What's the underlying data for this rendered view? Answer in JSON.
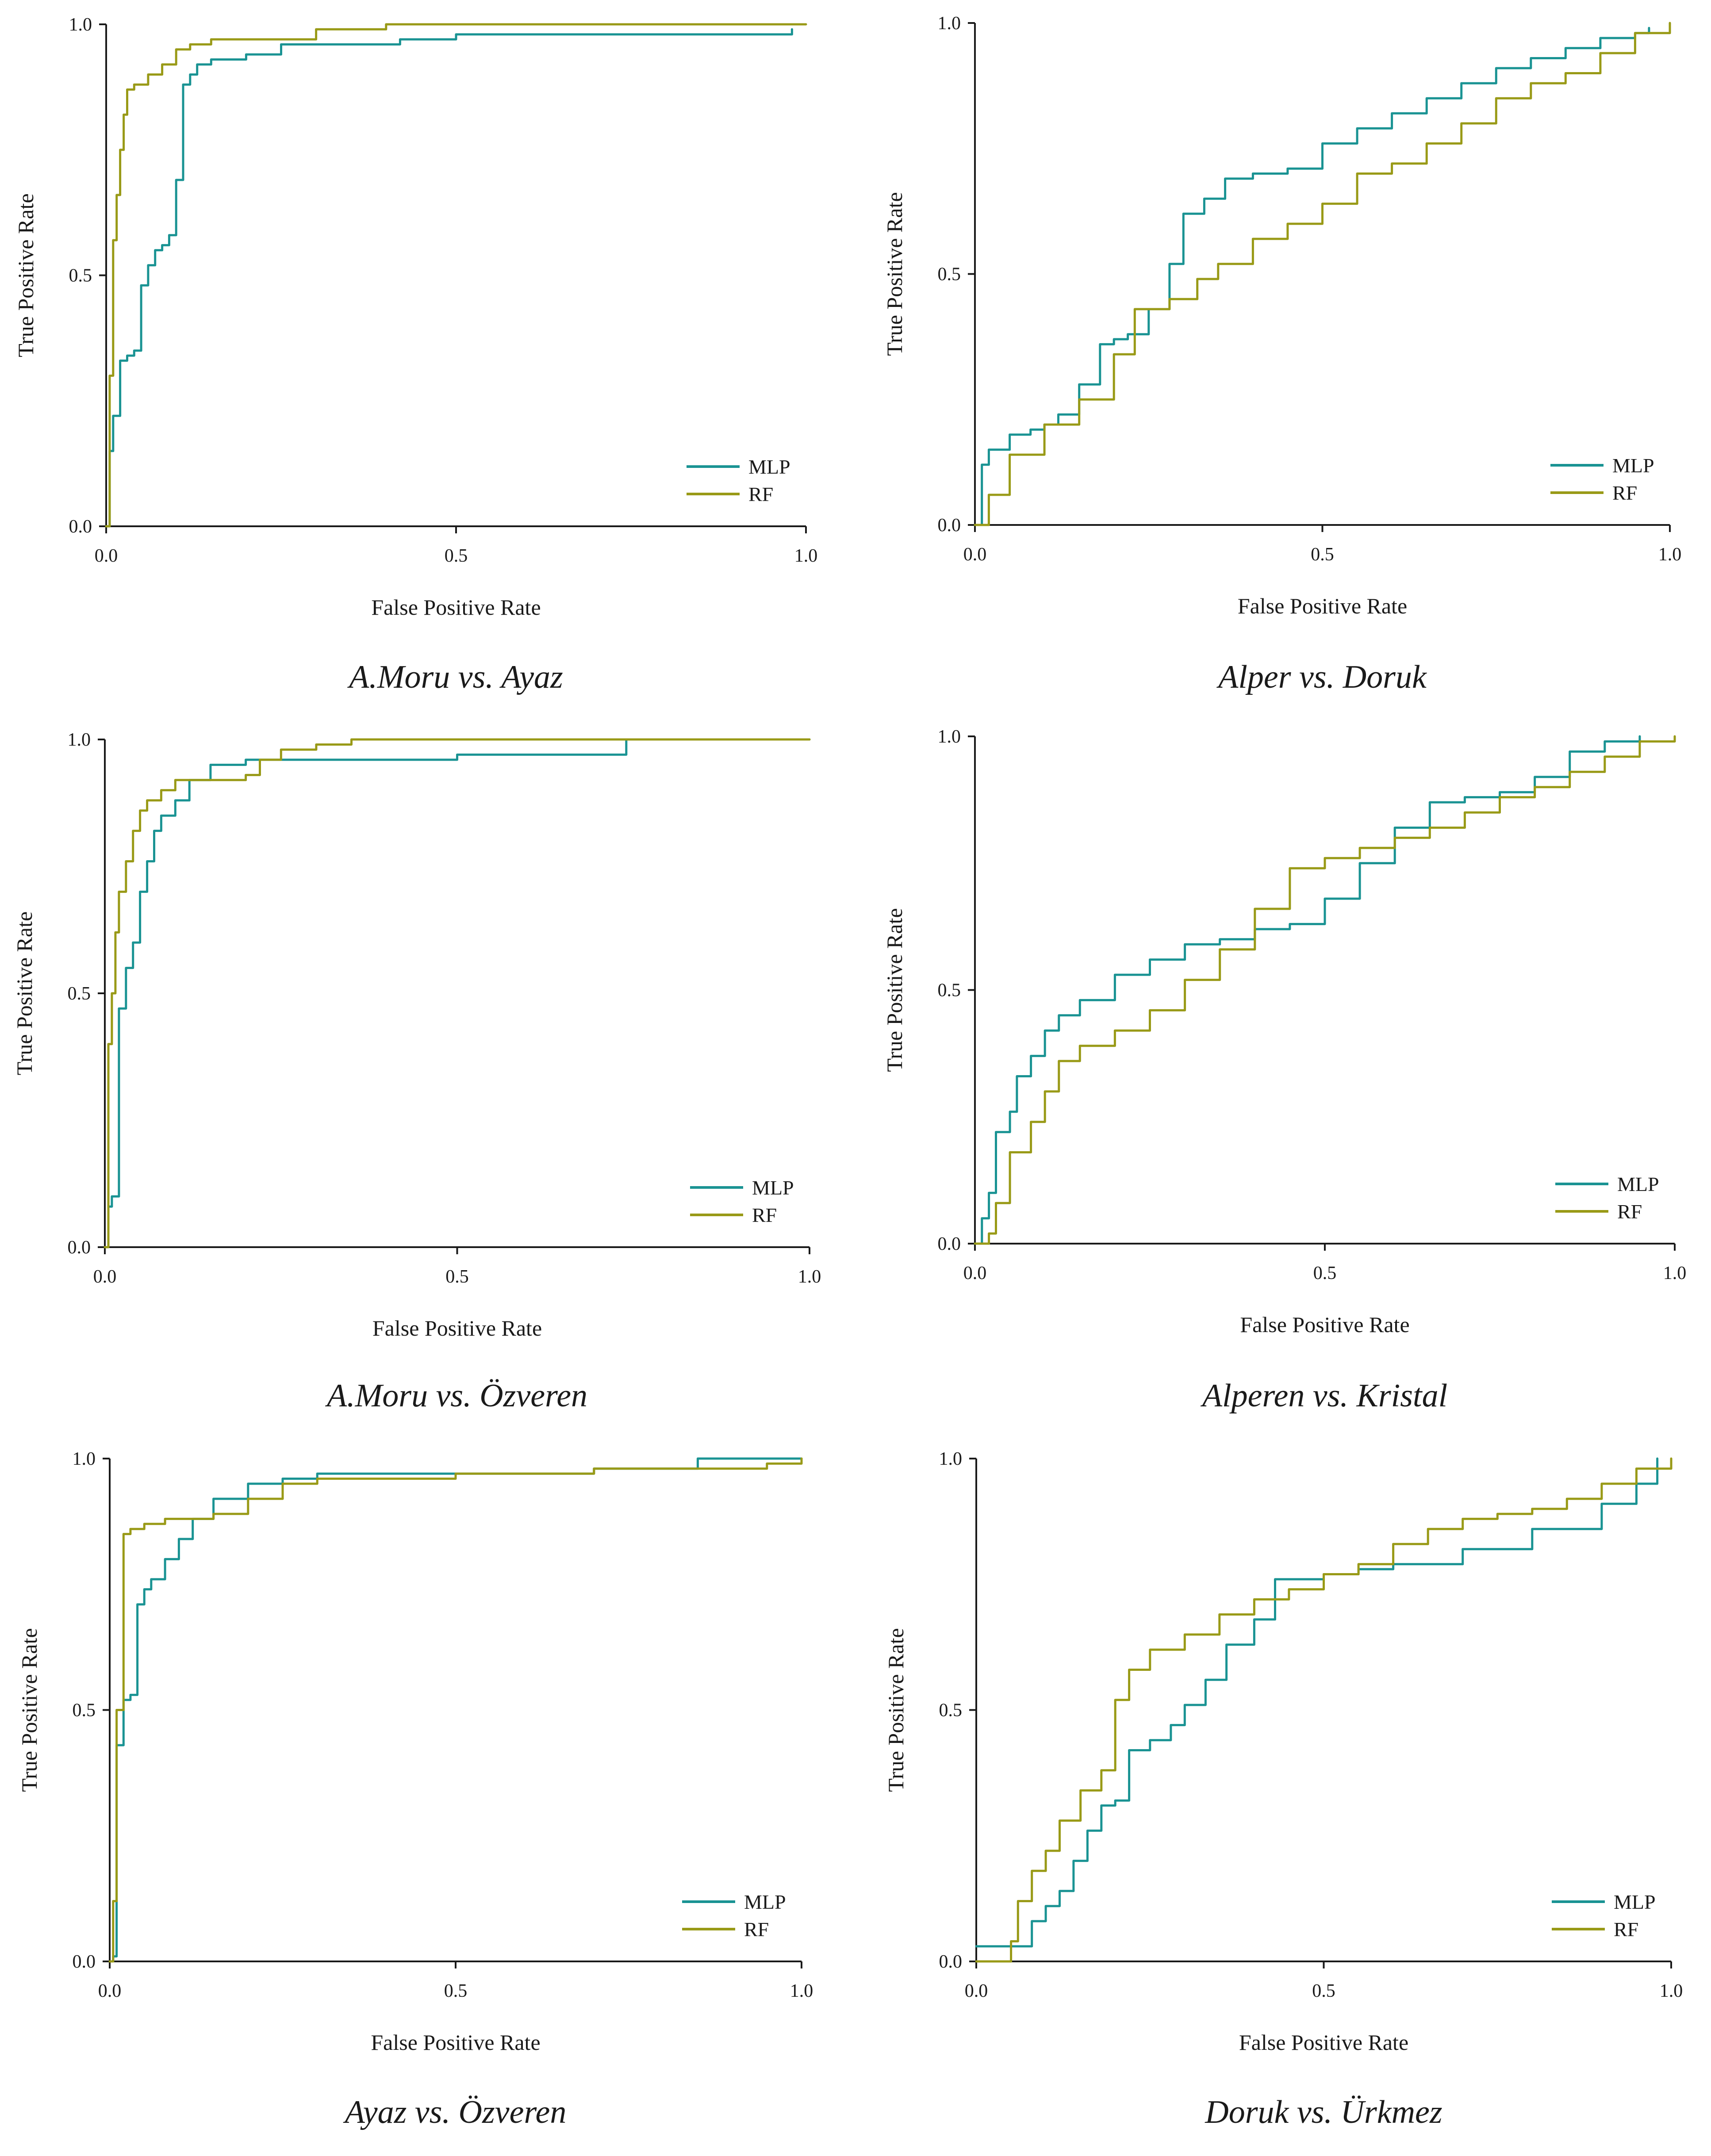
{
  "figure": {
    "captions": [
      "A.Moru vs. Ayaz",
      "Alper vs. Doruk",
      "A.Moru vs. Özveren",
      "Alperen vs. Kristal",
      "Ayaz vs. Özveren",
      "Doruk vs. Ürkmez"
    ]
  },
  "colors": {
    "MLP": "#1a9393",
    "RF": "#999a17",
    "axis": "#1a1a1a"
  },
  "chart_data": [
    {
      "type": "line",
      "title": "A.Moru vs. Ayaz",
      "xlabel": "False Positive Rate",
      "ylabel": "True Positive Rate",
      "xlim": [
        0,
        1
      ],
      "ylim": [
        0,
        1
      ],
      "xticks": [
        "0.0",
        "0.5",
        "1.0"
      ],
      "yticks": [
        "0.0",
        "0.5",
        "1.0"
      ],
      "legend": [
        "MLP",
        "RF"
      ],
      "legend_position": "bottom-right",
      "series": [
        {
          "name": "MLP",
          "x": [
            0,
            0.005,
            0.01,
            0.02,
            0.03,
            0.04,
            0.05,
            0.06,
            0.07,
            0.08,
            0.09,
            0.1,
            0.11,
            0.12,
            0.13,
            0.15,
            0.2,
            0.25,
            0.3,
            0.42,
            0.5,
            0.6,
            0.7,
            0.8,
            0.97,
            0.98
          ],
          "y": [
            0,
            0.15,
            0.22,
            0.33,
            0.34,
            0.35,
            0.48,
            0.52,
            0.55,
            0.56,
            0.58,
            0.69,
            0.88,
            0.9,
            0.92,
            0.93,
            0.94,
            0.96,
            0.96,
            0.97,
            0.98,
            0.98,
            0.98,
            0.98,
            0.98,
            0.99
          ]
        },
        {
          "name": "RF",
          "x": [
            0,
            0.005,
            0.01,
            0.015,
            0.02,
            0.025,
            0.03,
            0.04,
            0.05,
            0.06,
            0.08,
            0.1,
            0.12,
            0.15,
            0.2,
            0.3,
            0.4,
            0.5,
            0.7,
            1.0
          ],
          "y": [
            0,
            0.3,
            0.57,
            0.66,
            0.75,
            0.82,
            0.87,
            0.88,
            0.88,
            0.9,
            0.92,
            0.95,
            0.96,
            0.97,
            0.97,
            0.99,
            1.0,
            1.0,
            1.0,
            1.0
          ]
        }
      ]
    },
    {
      "type": "line",
      "title": "Alper vs. Doruk",
      "xlabel": "False Positive Rate",
      "ylabel": "True Positive Rate",
      "xlim": [
        0,
        1
      ],
      "ylim": [
        0,
        1
      ],
      "xticks": [
        "0.0",
        "0.5",
        "1.0"
      ],
      "yticks": [
        "0.0",
        "0.5",
        "1.0"
      ],
      "legend": [
        "MLP",
        "RF"
      ],
      "legend_position": "bottom-right",
      "series": [
        {
          "name": "MLP",
          "x": [
            0,
            0.01,
            0.02,
            0.05,
            0.08,
            0.1,
            0.12,
            0.15,
            0.18,
            0.2,
            0.22,
            0.25,
            0.28,
            0.3,
            0.33,
            0.36,
            0.4,
            0.45,
            0.5,
            0.55,
            0.6,
            0.65,
            0.7,
            0.75,
            0.8,
            0.85,
            0.9,
            0.95,
            0.97
          ],
          "y": [
            0,
            0.12,
            0.15,
            0.18,
            0.19,
            0.2,
            0.22,
            0.28,
            0.36,
            0.37,
            0.38,
            0.43,
            0.52,
            0.62,
            0.65,
            0.69,
            0.7,
            0.71,
            0.76,
            0.79,
            0.82,
            0.85,
            0.88,
            0.91,
            0.93,
            0.95,
            0.97,
            0.98,
            0.99
          ]
        },
        {
          "name": "RF",
          "x": [
            0,
            0.02,
            0.05,
            0.1,
            0.15,
            0.2,
            0.23,
            0.28,
            0.32,
            0.35,
            0.4,
            0.45,
            0.5,
            0.55,
            0.6,
            0.65,
            0.7,
            0.75,
            0.8,
            0.85,
            0.9,
            0.95,
            1.0
          ],
          "y": [
            0,
            0.06,
            0.14,
            0.2,
            0.25,
            0.34,
            0.43,
            0.45,
            0.49,
            0.52,
            0.57,
            0.6,
            0.64,
            0.7,
            0.72,
            0.76,
            0.8,
            0.85,
            0.88,
            0.9,
            0.94,
            0.98,
            1.0
          ]
        }
      ]
    },
    {
      "type": "line",
      "title": "A.Moru vs. Özveren",
      "xlabel": "False Positive Rate",
      "ylabel": "True Positive Rate",
      "xlim": [
        0,
        1
      ],
      "ylim": [
        0,
        1
      ],
      "xticks": [
        "0.0",
        "0.5",
        "1.0"
      ],
      "yticks": [
        "0.0",
        "0.5",
        "1.0"
      ],
      "legend": [
        "MLP",
        "RF"
      ],
      "legend_position": "bottom-right",
      "series": [
        {
          "name": "MLP",
          "x": [
            0,
            0.005,
            0.01,
            0.02,
            0.03,
            0.04,
            0.05,
            0.06,
            0.07,
            0.08,
            0.1,
            0.12,
            0.15,
            0.2,
            0.3,
            0.5,
            0.7,
            0.74,
            0.8,
            1.0
          ],
          "y": [
            0,
            0.08,
            0.1,
            0.47,
            0.55,
            0.6,
            0.7,
            0.76,
            0.82,
            0.85,
            0.88,
            0.92,
            0.95,
            0.96,
            0.96,
            0.97,
            0.97,
            1.0,
            1.0,
            1.0
          ]
        },
        {
          "name": "RF",
          "x": [
            0,
            0.005,
            0.01,
            0.015,
            0.02,
            0.03,
            0.04,
            0.05,
            0.06,
            0.08,
            0.1,
            0.15,
            0.2,
            0.22,
            0.25,
            0.3,
            0.35,
            0.5,
            1.0
          ],
          "y": [
            0,
            0.4,
            0.5,
            0.62,
            0.7,
            0.76,
            0.82,
            0.86,
            0.88,
            0.9,
            0.92,
            0.92,
            0.93,
            0.96,
            0.98,
            0.99,
            1.0,
            1.0,
            1.0
          ]
        }
      ]
    },
    {
      "type": "line",
      "title": "Alperen vs. Kristal",
      "xlabel": "False Positive Rate",
      "ylabel": "True Positive Rate",
      "xlim": [
        0,
        1
      ],
      "ylim": [
        0,
        1
      ],
      "xticks": [
        "0.0",
        "0.5",
        "1.0"
      ],
      "yticks": [
        "0.0",
        "0.5",
        "1.0"
      ],
      "legend": [
        "MLP",
        "RF"
      ],
      "legend_position": "bottom-right",
      "series": [
        {
          "name": "MLP",
          "x": [
            0,
            0.01,
            0.02,
            0.03,
            0.05,
            0.06,
            0.08,
            0.1,
            0.12,
            0.15,
            0.2,
            0.25,
            0.3,
            0.35,
            0.4,
            0.45,
            0.5,
            0.55,
            0.6,
            0.65,
            0.7,
            0.75,
            0.8,
            0.85,
            0.9,
            0.95
          ],
          "y": [
            0,
            0.05,
            0.1,
            0.22,
            0.26,
            0.33,
            0.37,
            0.42,
            0.45,
            0.48,
            0.53,
            0.56,
            0.59,
            0.6,
            0.62,
            0.63,
            0.68,
            0.75,
            0.82,
            0.87,
            0.88,
            0.89,
            0.92,
            0.97,
            0.99,
            1.0
          ]
        },
        {
          "name": "RF",
          "x": [
            0,
            0.02,
            0.03,
            0.05,
            0.08,
            0.1,
            0.12,
            0.15,
            0.2,
            0.25,
            0.3,
            0.35,
            0.4,
            0.45,
            0.5,
            0.55,
            0.6,
            0.65,
            0.7,
            0.75,
            0.8,
            0.85,
            0.9,
            0.95,
            1.0
          ],
          "y": [
            0,
            0.02,
            0.08,
            0.18,
            0.24,
            0.3,
            0.36,
            0.39,
            0.42,
            0.46,
            0.52,
            0.58,
            0.66,
            0.74,
            0.76,
            0.78,
            0.8,
            0.82,
            0.85,
            0.88,
            0.9,
            0.93,
            0.96,
            0.99,
            1.0
          ]
        }
      ]
    },
    {
      "type": "line",
      "title": "Ayaz vs. Özveren",
      "xlabel": "False Positive Rate",
      "ylabel": "True Positive Rate",
      "xlim": [
        0,
        1
      ],
      "ylim": [
        0,
        1
      ],
      "xticks": [
        "0.0",
        "0.5",
        "1.0"
      ],
      "yticks": [
        "0.0",
        "0.5",
        "1.0"
      ],
      "legend": [
        "MLP",
        "RF"
      ],
      "legend_position": "bottom-right",
      "series": [
        {
          "name": "MLP",
          "x": [
            0,
            0.005,
            0.01,
            0.02,
            0.03,
            0.04,
            0.05,
            0.06,
            0.08,
            0.1,
            0.12,
            0.15,
            0.2,
            0.25,
            0.3,
            0.5,
            0.7,
            0.84,
            0.85,
            1.0
          ],
          "y": [
            0,
            0.01,
            0.43,
            0.52,
            0.53,
            0.71,
            0.74,
            0.76,
            0.8,
            0.84,
            0.88,
            0.92,
            0.95,
            0.96,
            0.97,
            0.97,
            0.98,
            0.98,
            1.0,
            1.0
          ]
        },
        {
          "name": "RF",
          "x": [
            0,
            0.005,
            0.01,
            0.02,
            0.03,
            0.05,
            0.08,
            0.1,
            0.15,
            0.2,
            0.25,
            0.3,
            0.5,
            0.7,
            0.85,
            0.95,
            1.0
          ],
          "y": [
            0,
            0.12,
            0.5,
            0.85,
            0.86,
            0.87,
            0.88,
            0.88,
            0.89,
            0.92,
            0.95,
            0.96,
            0.97,
            0.98,
            0.98,
            0.99,
            1.0
          ]
        }
      ]
    },
    {
      "type": "line",
      "title": "Doruk vs. Ürkmez",
      "xlabel": "False Positive Rate",
      "ylabel": "True Positive Rate",
      "xlim": [
        0,
        1
      ],
      "ylim": [
        0,
        1
      ],
      "xticks": [
        "0.0",
        "0.5",
        "1.0"
      ],
      "yticks": [
        "0.0",
        "0.5",
        "1.0"
      ],
      "legend": [
        "MLP",
        "RF"
      ],
      "legend_position": "bottom-right",
      "series": [
        {
          "name": "MLP",
          "x": [
            0,
            0.03,
            0.06,
            0.08,
            0.1,
            0.12,
            0.14,
            0.16,
            0.18,
            0.2,
            0.22,
            0.25,
            0.28,
            0.3,
            0.33,
            0.36,
            0.4,
            0.43,
            0.5,
            0.55,
            0.6,
            0.7,
            0.8,
            0.9,
            0.95,
            0.98
          ],
          "y": [
            0.03,
            0.03,
            0.03,
            0.08,
            0.11,
            0.14,
            0.2,
            0.26,
            0.31,
            0.32,
            0.42,
            0.44,
            0.47,
            0.51,
            0.56,
            0.63,
            0.68,
            0.76,
            0.77,
            0.78,
            0.79,
            0.82,
            0.86,
            0.91,
            0.95,
            1.0
          ]
        },
        {
          "name": "RF",
          "x": [
            0,
            0.03,
            0.05,
            0.06,
            0.08,
            0.1,
            0.12,
            0.15,
            0.18,
            0.2,
            0.22,
            0.25,
            0.3,
            0.35,
            0.4,
            0.45,
            0.5,
            0.55,
            0.6,
            0.65,
            0.7,
            0.75,
            0.8,
            0.85,
            0.9,
            0.95,
            1.0
          ],
          "y": [
            0,
            0,
            0.04,
            0.12,
            0.18,
            0.22,
            0.28,
            0.34,
            0.38,
            0.52,
            0.58,
            0.62,
            0.65,
            0.69,
            0.72,
            0.74,
            0.77,
            0.79,
            0.83,
            0.86,
            0.88,
            0.89,
            0.9,
            0.92,
            0.95,
            0.98,
            1.0
          ]
        }
      ]
    }
  ]
}
